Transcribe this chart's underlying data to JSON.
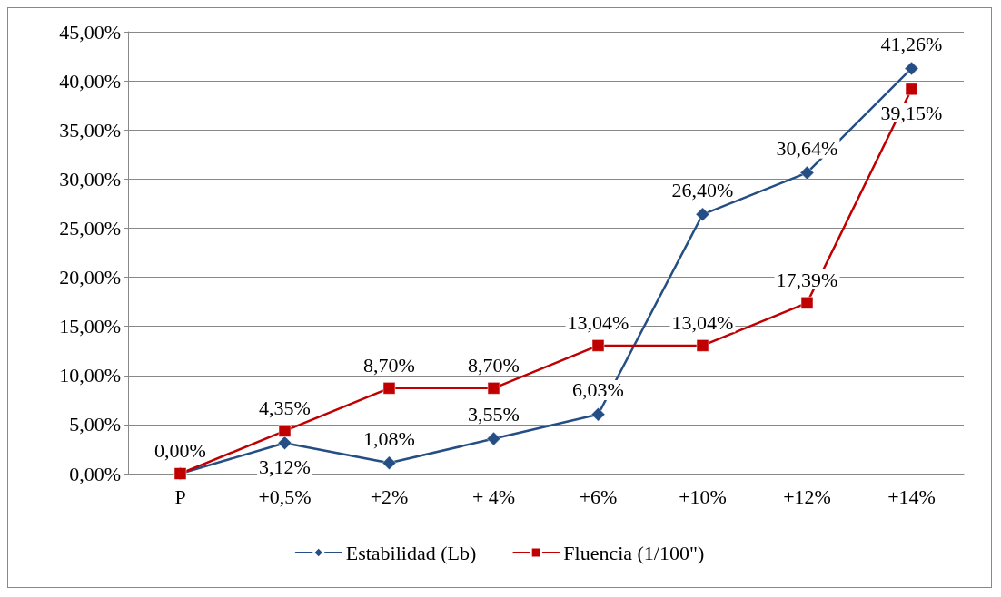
{
  "chart_data": {
    "type": "line",
    "categories": [
      "P",
      "+0,5%",
      "+2%",
      "+ 4%",
      "+6%",
      "+10%",
      "+12%",
      "+14%"
    ],
    "series": [
      {
        "name": "Estabilidad (Lb)",
        "color": "#254f84",
        "marker": "diamond",
        "values": [
          0,
          3.12,
          1.08,
          3.55,
          6.03,
          26.4,
          30.64,
          41.26
        ],
        "value_labels": [
          null,
          "3,12%",
          "1,08%",
          "3,55%",
          "6,03%",
          "26,40%",
          "30,64%",
          "41,26%"
        ]
      },
      {
        "name": "Fluencia (1/100\")",
        "color": "#c00000",
        "marker": "square",
        "values": [
          0,
          4.35,
          8.7,
          8.7,
          13.04,
          13.04,
          17.39,
          39.15
        ],
        "value_labels": [
          "0,00%",
          "4,35%",
          "8,70%",
          "8,70%",
          "13,04%",
          "13,04%",
          "17,39%",
          "39,15%"
        ]
      }
    ],
    "ylim": [
      0,
      45
    ],
    "yticks": [
      {
        "value": 0,
        "label": "0,00%"
      },
      {
        "value": 5,
        "label": "5,00%"
      },
      {
        "value": 10,
        "label": "10,00%"
      },
      {
        "value": 15,
        "label": "15,00%"
      },
      {
        "value": 20,
        "label": "20,00%"
      },
      {
        "value": 25,
        "label": "25,00%"
      },
      {
        "value": 30,
        "label": "30,00%"
      },
      {
        "value": 35,
        "label": "35,00%"
      },
      {
        "value": 40,
        "label": "40,00%"
      },
      {
        "value": 45,
        "label": "45,00%"
      }
    ],
    "grid": "y",
    "legend": "bottom",
    "line_style": "solid"
  }
}
